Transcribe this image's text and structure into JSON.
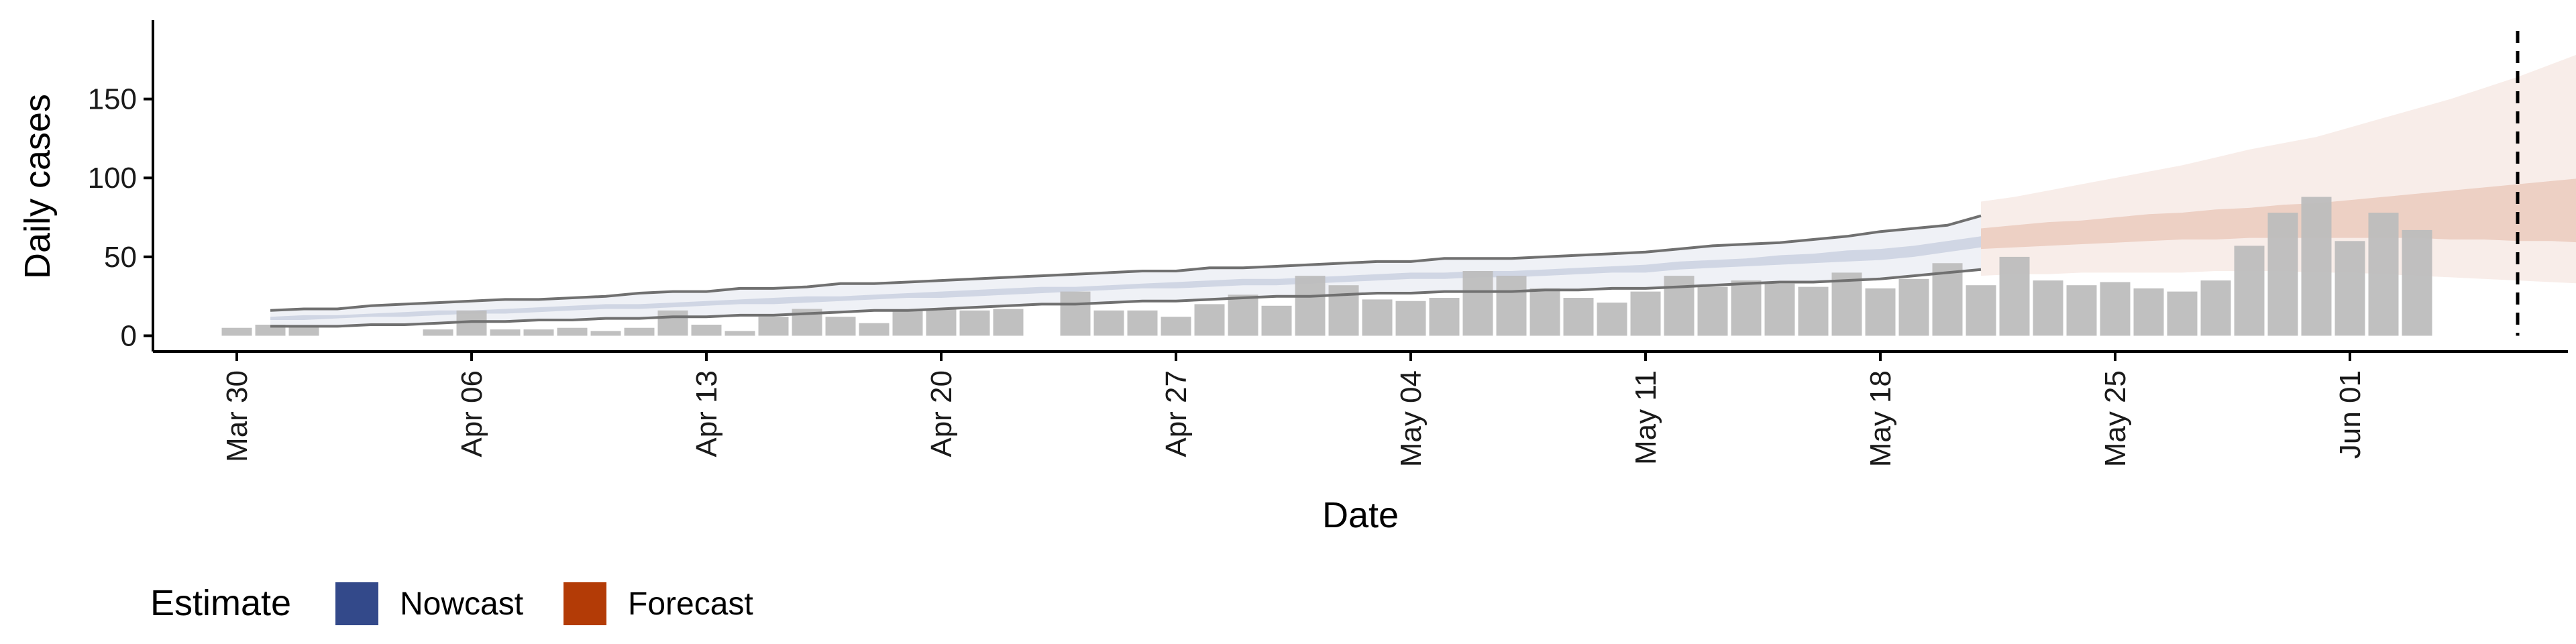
{
  "chart_data": {
    "type": "bar",
    "xlabel": "Date",
    "ylabel": "Daily cases",
    "x_ticks": [
      "Mar 30",
      "Apr 06",
      "Apr 13",
      "Apr 20",
      "Apr 27",
      "May 04",
      "May 11",
      "May 18",
      "May 25",
      "Jun 01"
    ],
    "y_ticks": [
      0,
      50,
      100,
      150
    ],
    "ylim": [
      -10,
      200
    ],
    "x_range_days": [
      -2.5,
      69.5
    ],
    "grid": false,
    "legend": {
      "title": "Estimate",
      "position": "bottom-left",
      "items": [
        {
          "label": "Nowcast",
          "color": "#33498a"
        },
        {
          "label": "Forecast",
          "color": "#b33b06"
        }
      ]
    },
    "reported_cases": {
      "color": "#bdbdbd",
      "values": [
        5,
        7,
        6,
        null,
        null,
        null,
        4,
        16,
        4,
        4,
        5,
        3,
        5,
        16,
        7,
        3,
        12,
        17,
        12,
        8,
        16,
        17,
        16,
        17,
        null,
        28,
        16,
        16,
        12,
        20,
        26,
        19,
        38,
        32,
        23,
        22,
        24,
        41,
        38,
        30,
        24,
        21,
        28,
        38,
        31,
        35,
        33,
        31,
        40,
        30,
        36,
        46,
        32,
        50,
        35,
        32,
        34,
        30,
        28,
        35,
        57,
        78,
        88,
        60,
        78,
        67
      ]
    },
    "estimate_bands": {
      "nowcast": {
        "color": "#33498a",
        "lower90": [
          6,
          6,
          6,
          7,
          7,
          8,
          9,
          9,
          10,
          10,
          11,
          11,
          12,
          12,
          13,
          13,
          14,
          15,
          16,
          16,
          17,
          18,
          19,
          20,
          20,
          21,
          22,
          22,
          23,
          24,
          25,
          25,
          26,
          27,
          27,
          28,
          28,
          28,
          29,
          29,
          30,
          30,
          31,
          32,
          33,
          34,
          34,
          35,
          36,
          38,
          40,
          42
        ],
        "upper90": [
          16,
          17,
          17,
          19,
          20,
          21,
          22,
          23,
          23,
          24,
          25,
          27,
          28,
          28,
          30,
          30,
          31,
          33,
          33,
          34,
          35,
          36,
          37,
          38,
          39,
          40,
          41,
          41,
          43,
          43,
          44,
          45,
          46,
          47,
          47,
          49,
          49,
          49,
          50,
          51,
          52,
          53,
          55,
          57,
          58,
          59,
          61,
          63,
          66,
          68,
          70,
          76
        ],
        "lower50": [
          10,
          10,
          11,
          12,
          12,
          13,
          14,
          14,
          15,
          16,
          17,
          17,
          18,
          19,
          20,
          20,
          21,
          22,
          23,
          24,
          24,
          25,
          26,
          27,
          28,
          29,
          30,
          30,
          31,
          32,
          32,
          33,
          34,
          35,
          36,
          36,
          37,
          37,
          38,
          39,
          40,
          40,
          42,
          43,
          44,
          45,
          46,
          47,
          48,
          50,
          53,
          56
        ],
        "upper50": [
          12,
          13,
          13,
          14,
          15,
          16,
          16,
          17,
          18,
          19,
          20,
          20,
          21,
          22,
          23,
          24,
          25,
          25,
          26,
          27,
          28,
          29,
          30,
          31,
          31,
          32,
          33,
          34,
          35,
          36,
          36,
          37,
          38,
          39,
          40,
          40,
          41,
          41,
          42,
          43,
          44,
          45,
          47,
          48,
          49,
          51,
          52,
          54,
          55,
          57,
          60,
          63
        ],
        "median": [
          11,
          11.5,
          12,
          13,
          13.5,
          14.5,
          15,
          15.5,
          16.5,
          17.5,
          18.5,
          18.5,
          19.5,
          20.5,
          21.5,
          22,
          23,
          23.5,
          24.5,
          25.5,
          26,
          27,
          28,
          29,
          29.5,
          30.5,
          31.5,
          32,
          33,
          34,
          34,
          35,
          36,
          37,
          38,
          38,
          39,
          39,
          40,
          41,
          42,
          42.5,
          44.5,
          45.5,
          46.5,
          48,
          49,
          50.5,
          51.5,
          53.5,
          56.5,
          59.5
        ]
      },
      "forecast": {
        "color": "#b33b06",
        "lower90": [
          38,
          39,
          39,
          40,
          40,
          40,
          40,
          41,
          41,
          41,
          40,
          40,
          39,
          38,
          37,
          36,
          35,
          34,
          33,
          32
        ],
        "upper90": [
          85,
          88,
          92,
          96,
          100,
          104,
          108,
          113,
          118,
          122,
          126,
          132,
          138,
          144,
          150,
          157,
          164,
          172,
          180,
          188
        ],
        "lower50": [
          55,
          56,
          57,
          58,
          59,
          60,
          61,
          61,
          62,
          62,
          62,
          62,
          62,
          62,
          61,
          61,
          60,
          60,
          59,
          58
        ],
        "upper50": [
          68,
          70,
          72,
          73,
          75,
          77,
          78,
          80,
          81,
          83,
          84,
          86,
          88,
          90,
          92,
          94,
          96,
          98,
          100,
          103
        ]
      }
    },
    "reference_line": {
      "type": "vertical",
      "style": "dashed",
      "color": "#000000",
      "date_index": 68
    }
  }
}
